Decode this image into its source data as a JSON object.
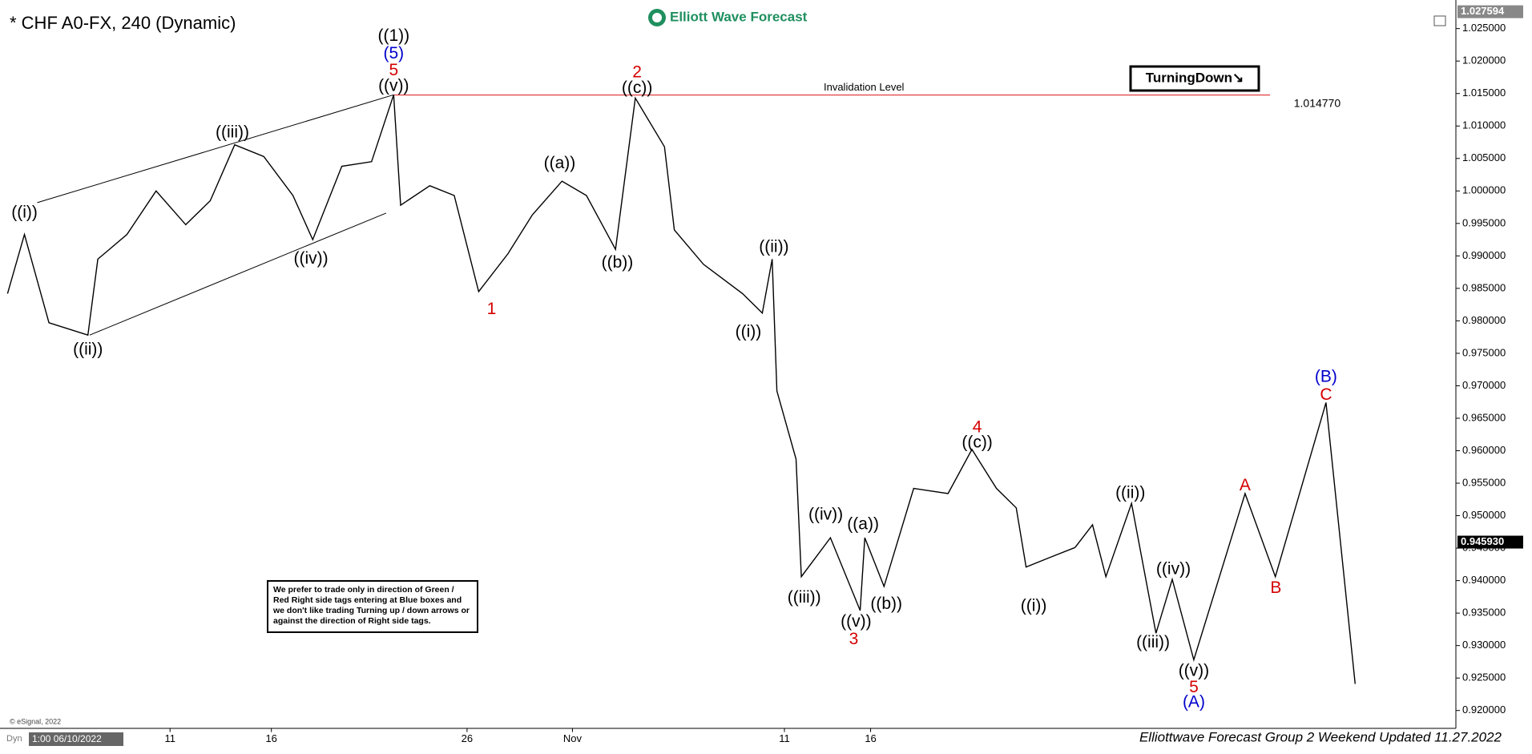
{
  "chart_data": {
    "type": "line",
    "title": "* CHF A0-FX, 240 (Dynamic)",
    "logo": "Elliott Wave Forecast",
    "tag": "TurningDown↘",
    "note": "We prefer to trade only in direction of Green / Red Right side tags entering at Blue boxes and we don't like trading Turning up / down arrows or against the direction of Right side tags.",
    "copyright": "© eSignal, 2022",
    "corner_label": "Dyn",
    "start_label": "1:00 06/10/2022",
    "footer": "Elliottwave Forecast Group 2 Weekend Updated 11.27.2022",
    "xlim": [
      0,
      250
    ],
    "ylim": [
      0.9173,
      1.0294
    ],
    "xticks": [
      {
        "value": 29.2,
        "label": "11"
      },
      {
        "value": 46.6,
        "label": "16"
      },
      {
        "value": 80.2,
        "label": "26"
      },
      {
        "value": 98.3,
        "label": "Nov"
      },
      {
        "value": 134.7,
        "label": "11"
      },
      {
        "value": 149.5,
        "label": "16"
      }
    ],
    "yticks": [
      {
        "value": 0.92,
        "label": "0.920000"
      },
      {
        "value": 0.925,
        "label": "0.925000"
      },
      {
        "value": 0.93,
        "label": "0.930000"
      },
      {
        "value": 0.935,
        "label": "0.935000"
      },
      {
        "value": 0.94,
        "label": "0.940000"
      },
      {
        "value": 0.945,
        "label": "0.945000"
      },
      {
        "value": 0.95,
        "label": "0.950000"
      },
      {
        "value": 0.955,
        "label": "0.955000"
      },
      {
        "value": 0.96,
        "label": "0.960000"
      },
      {
        "value": 0.965,
        "label": "0.965000"
      },
      {
        "value": 0.97,
        "label": "0.970000"
      },
      {
        "value": 0.975,
        "label": "0.975000"
      },
      {
        "value": 0.98,
        "label": "0.980000"
      },
      {
        "value": 0.985,
        "label": "0.985000"
      },
      {
        "value": 0.99,
        "label": "0.990000"
      },
      {
        "value": 0.995,
        "label": "0.995000"
      },
      {
        "value": 1.0,
        "label": "1.000000"
      },
      {
        "value": 1.005,
        "label": "1.005000"
      },
      {
        "value": 1.01,
        "label": "1.010000"
      },
      {
        "value": 1.015,
        "label": "1.015000"
      },
      {
        "value": 1.02,
        "label": "1.020000"
      },
      {
        "value": 1.025,
        "label": "1.025000"
      }
    ],
    "top_marker": {
      "value": 1.027594,
      "label": "1.027594"
    },
    "last_price": {
      "value": 0.94593,
      "label": "0.945930"
    },
    "price": {
      "color": "#000000",
      "x": [
        1.3,
        4.2,
        8.4,
        15.1,
        16.8,
        21.8,
        26.8,
        31.9,
        36.1,
        40.3,
        45.3,
        50.3,
        53.7,
        58.7,
        63.8,
        67.6,
        68.8,
        73.8,
        78.0,
        82.2,
        87.2,
        91.4,
        96.5,
        100.7,
        105.7,
        109.1,
        114.1,
        115.8,
        120.8,
        127.5,
        130.9,
        132.6,
        133.4,
        136.7,
        137.6,
        142.6,
        147.7,
        148.5,
        151.8,
        156.9,
        162.8,
        166.9,
        171.1,
        174.5,
        176.2,
        180.4,
        184.6
      ],
      "values": [
        0.9842,
        0.9933,
        0.9797,
        0.9778,
        0.9895,
        0.9933,
        1.0,
        0.9948,
        0.9985,
        1.0071,
        1.0053,
        0.9993,
        0.9925,
        1.0038,
        1.0045,
        1.0148,
        0.9978,
        1.0008,
        0.9993,
        0.9845,
        0.9903,
        0.9963,
        1.0015,
        0.9993,
        0.991,
        1.0143,
        1.0068,
        0.994,
        0.9887,
        0.9842,
        0.9812,
        0.9895,
        0.9692,
        0.9587,
        0.9406,
        0.9466,
        0.9354,
        0.9466,
        0.9391,
        0.9542,
        0.9534,
        0.9602,
        0.9542,
        0.9512,
        0.9421,
        0.9436,
        0.9451
      ]
    },
    "projection": {
      "color": "#000000",
      "x": [
        184.6,
        187.6,
        189.9,
        194.3,
        198.5,
        201.3,
        205.0,
        213.8,
        219.0,
        227.7,
        232.7
      ],
      "values": [
        0.9451,
        0.9486,
        0.9406,
        0.9519,
        0.9319,
        0.9402,
        0.9278,
        0.9534,
        0.9406,
        0.9674,
        0.9241
      ]
    },
    "trend_lines": [
      {
        "x": [
          6.4,
          67.6
        ],
        "values": [
          0.9982,
          1.0148
        ]
      },
      {
        "x": [
          15.4,
          66.3
        ],
        "values": [
          0.9778,
          0.9966
        ]
      }
    ],
    "invalidation": {
      "label": "Invalidation Level",
      "value": 1.01477,
      "value_label": "1.014770",
      "x": [
        67.6,
        218.1
      ],
      "color": "#e03030"
    },
    "annotations": [
      {
        "text": "((1))",
        "x": 67.6,
        "y": 1.0238,
        "color": "#000000"
      },
      {
        "text": "(5)",
        "x": 67.6,
        "y": 1.0211,
        "color": "#0000cc"
      },
      {
        "text": "5",
        "x": 67.6,
        "y": 1.0185,
        "color": "#d40000"
      },
      {
        "text": "((v))",
        "x": 67.6,
        "y": 1.0161,
        "color": "#000000"
      },
      {
        "text": "((i))",
        "x": 4.2,
        "y": 0.9966,
        "color": "#000000"
      },
      {
        "text": "((ii))",
        "x": 15.1,
        "y": 0.9755,
        "color": "#000000"
      },
      {
        "text": "((iii))",
        "x": 39.9,
        "y": 1.0089,
        "color": "#000000"
      },
      {
        "text": "((iv))",
        "x": 53.4,
        "y": 0.9895,
        "color": "#000000"
      },
      {
        "text": "1",
        "x": 84.4,
        "y": 0.9817,
        "color": "#d40000"
      },
      {
        "text": "((a))",
        "x": 96.1,
        "y": 1.0042,
        "color": "#000000"
      },
      {
        "text": "((b))",
        "x": 106.0,
        "y": 0.9889,
        "color": "#000000"
      },
      {
        "text": "2",
        "x": 109.4,
        "y": 1.0182,
        "color": "#d40000"
      },
      {
        "text": "((c))",
        "x": 109.4,
        "y": 1.0158,
        "color": "#000000"
      },
      {
        "text": "((ii))",
        "x": 132.9,
        "y": 0.9913,
        "color": "#000000"
      },
      {
        "text": "((i))",
        "x": 128.5,
        "y": 0.9782,
        "color": "#000000"
      },
      {
        "text": "((iii))",
        "x": 138.1,
        "y": 0.9373,
        "color": "#000000"
      },
      {
        "text": "((iv))",
        "x": 141.8,
        "y": 0.9501,
        "color": "#000000"
      },
      {
        "text": "((a))",
        "x": 148.2,
        "y": 0.9486,
        "color": "#000000"
      },
      {
        "text": "((v))",
        "x": 147.0,
        "y": 0.9336,
        "color": "#000000"
      },
      {
        "text": "((b))",
        "x": 152.2,
        "y": 0.9363,
        "color": "#000000"
      },
      {
        "text": "3",
        "x": 146.6,
        "y": 0.9309,
        "color": "#d40000"
      },
      {
        "text": "4",
        "x": 167.8,
        "y": 0.9635,
        "color": "#d40000"
      },
      {
        "text": "((c))",
        "x": 167.8,
        "y": 0.9612,
        "color": "#000000"
      },
      {
        "text": "((i))",
        "x": 177.5,
        "y": 0.936,
        "color": "#000000"
      },
      {
        "text": "((ii))",
        "x": 194.1,
        "y": 0.9534,
        "color": "#000000"
      },
      {
        "text": "((iii))",
        "x": 198.0,
        "y": 0.9304,
        "color": "#000000"
      },
      {
        "text": "((iv))",
        "x": 201.5,
        "y": 0.9417,
        "color": "#000000"
      },
      {
        "text": "((v))",
        "x": 205.0,
        "y": 0.926,
        "color": "#000000"
      },
      {
        "text": "5",
        "x": 205.0,
        "y": 0.9235,
        "color": "#d40000"
      },
      {
        "text": "(A)",
        "x": 205.0,
        "y": 0.9212,
        "color": "#0000cc"
      },
      {
        "text": "A",
        "x": 213.8,
        "y": 0.9546,
        "color": "#d40000"
      },
      {
        "text": "B",
        "x": 219.1,
        "y": 0.9388,
        "color": "#d40000"
      },
      {
        "text": "(B)",
        "x": 227.7,
        "y": 0.9713,
        "color": "#0000cc"
      },
      {
        "text": "C",
        "x": 227.7,
        "y": 0.9685,
        "color": "#d40000"
      }
    ]
  }
}
